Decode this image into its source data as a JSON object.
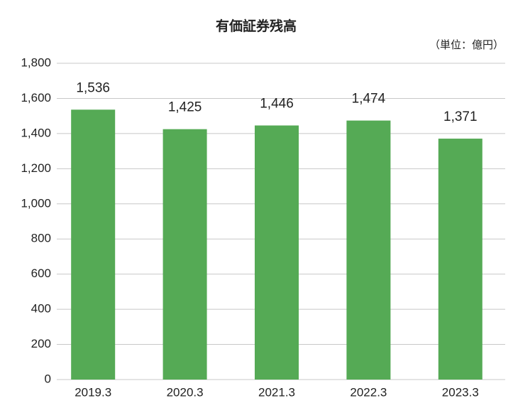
{
  "chart_data": {
    "type": "bar",
    "title": "有価証券残高",
    "unit": "（単位：億円）",
    "categories": [
      "2019.3",
      "2020.3",
      "2021.3",
      "2022.3",
      "2023.3"
    ],
    "values": [
      1536,
      1425,
      1446,
      1474,
      1371
    ],
    "value_labels": [
      "1,536",
      "1,425",
      "1,446",
      "1,474",
      "1,371"
    ],
    "color": "#55aa55",
    "ylim": [
      0,
      1800
    ],
    "yticks": [
      0,
      200,
      400,
      600,
      800,
      {
        "value": 1000,
        "label": "1,000"
      },
      {
        "value": 1200,
        "label": "1,200"
      },
      {
        "value": 1400,
        "label": "1,400"
      },
      {
        "value": 1600,
        "label": "1,600"
      },
      {
        "value": 1800,
        "label": "1,800"
      }
    ],
    "grid": true
  }
}
